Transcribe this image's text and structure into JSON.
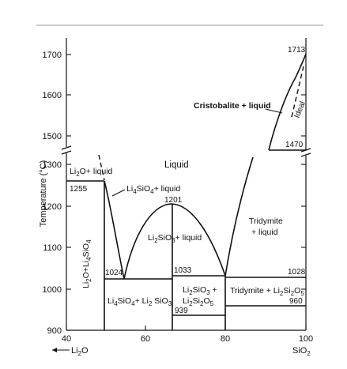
{
  "diagram": {
    "axes": {
      "y_title": "Temperature (°C)",
      "x_left_label": "Li",
      "x_left_sub": "2",
      "x_left_tail": "O",
      "x_right_label": "SiO",
      "x_right_sub": "2",
      "x_ticks": [
        "40",
        "60",
        "80",
        "100"
      ],
      "y_ticks_lower": [
        "900",
        "1000",
        "1100",
        "1200",
        "1300"
      ],
      "y_ticks_upper": [
        "1500",
        "1600",
        "1700"
      ]
    },
    "temperatures": {
      "t1255": "1255",
      "t1024": "1024",
      "t1201": "1201",
      "t1033": "1033",
      "t939": "939",
      "t1028": "1028",
      "t960": "960",
      "t1713": "1713",
      "t1470": "1470"
    },
    "regions": {
      "liquid": "Liquid",
      "tridymite_liquid_1": "Tridymite",
      "tridymite_liquid_2": "+ liquid",
      "cristobalite_liquid": "Cristobalite + liquid",
      "ideal": "Ideal"
    },
    "colors": {
      "ink": "#111111",
      "background": "#ffffff"
    }
  }
}
